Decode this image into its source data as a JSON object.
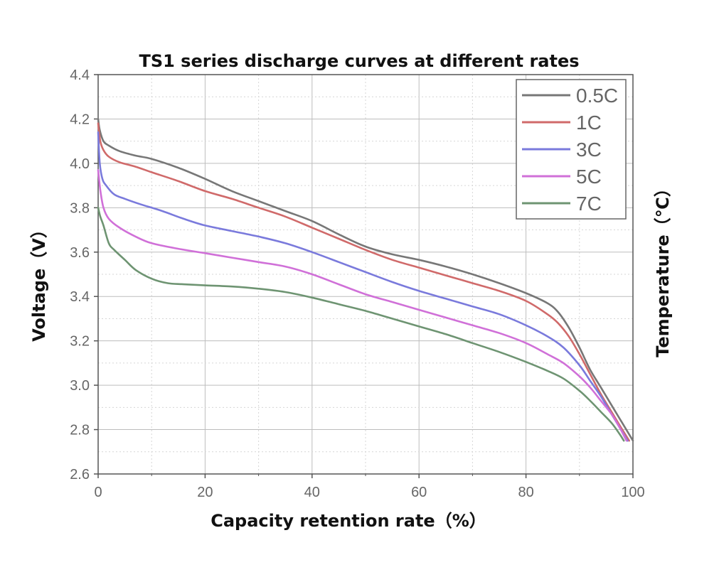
{
  "chart_data": {
    "type": "line",
    "title": "TS1 series discharge curves at different rates",
    "xlabel": "Capacity retention rate（%）",
    "ylabel": "Voltage（V）",
    "y2label": "Temperature（℃）",
    "xlim": [
      0,
      100
    ],
    "ylim": [
      2.6,
      4.4
    ],
    "xticks": [
      0,
      20,
      40,
      60,
      80,
      100
    ],
    "yticks": [
      2.6,
      2.8,
      3.0,
      3.2,
      3.4,
      3.6,
      3.8,
      4.0,
      4.2,
      4.4
    ],
    "tick_labels_x": [
      "0",
      "20",
      "40",
      "60",
      "80",
      "100"
    ],
    "tick_labels_y": [
      "2.6",
      "2.8",
      "3.0",
      "3.2",
      "3.4",
      "3.6",
      "3.8",
      "4.0",
      "4.2",
      "4.4"
    ],
    "grid": true,
    "legend_position": "top-right",
    "series": [
      {
        "name": "0.5C",
        "color": "#777777",
        "points": [
          [
            0,
            4.2
          ],
          [
            0.3,
            4.15
          ],
          [
            1,
            4.1
          ],
          [
            2,
            4.08
          ],
          [
            4,
            4.055
          ],
          [
            7,
            4.035
          ],
          [
            10,
            4.02
          ],
          [
            15,
            3.98
          ],
          [
            20,
            3.93
          ],
          [
            25,
            3.875
          ],
          [
            30,
            3.83
          ],
          [
            35,
            3.785
          ],
          [
            40,
            3.74
          ],
          [
            45,
            3.68
          ],
          [
            50,
            3.625
          ],
          [
            55,
            3.59
          ],
          [
            60,
            3.565
          ],
          [
            65,
            3.535
          ],
          [
            70,
            3.5
          ],
          [
            75,
            3.46
          ],
          [
            80,
            3.415
          ],
          [
            84,
            3.37
          ],
          [
            86,
            3.33
          ],
          [
            88,
            3.26
          ],
          [
            90,
            3.17
          ],
          [
            92,
            3.07
          ],
          [
            94,
            2.99
          ],
          [
            96,
            2.91
          ],
          [
            98,
            2.83
          ],
          [
            100,
            2.75
          ]
        ]
      },
      {
        "name": "1C",
        "color": "#d06a6a",
        "points": [
          [
            0,
            4.18
          ],
          [
            0.4,
            4.1
          ],
          [
            1,
            4.06
          ],
          [
            2,
            4.03
          ],
          [
            4,
            4.005
          ],
          [
            7,
            3.985
          ],
          [
            10,
            3.96
          ],
          [
            15,
            3.92
          ],
          [
            20,
            3.875
          ],
          [
            25,
            3.84
          ],
          [
            30,
            3.8
          ],
          [
            35,
            3.76
          ],
          [
            40,
            3.71
          ],
          [
            45,
            3.66
          ],
          [
            50,
            3.61
          ],
          [
            55,
            3.565
          ],
          [
            60,
            3.53
          ],
          [
            65,
            3.495
          ],
          [
            70,
            3.46
          ],
          [
            75,
            3.425
          ],
          [
            80,
            3.38
          ],
          [
            84,
            3.32
          ],
          [
            86,
            3.28
          ],
          [
            88,
            3.22
          ],
          [
            90,
            3.14
          ],
          [
            92,
            3.05
          ],
          [
            94,
            2.96
          ],
          [
            96,
            2.88
          ],
          [
            98,
            2.8
          ],
          [
            99.3,
            2.75
          ]
        ]
      },
      {
        "name": "3C",
        "color": "#7a7adc",
        "points": [
          [
            0,
            4.14
          ],
          [
            0.3,
            4.0
          ],
          [
            0.8,
            3.93
          ],
          [
            1.5,
            3.9
          ],
          [
            3,
            3.86
          ],
          [
            5,
            3.84
          ],
          [
            8,
            3.815
          ],
          [
            12,
            3.785
          ],
          [
            16,
            3.75
          ],
          [
            20,
            3.72
          ],
          [
            25,
            3.695
          ],
          [
            30,
            3.67
          ],
          [
            35,
            3.64
          ],
          [
            40,
            3.6
          ],
          [
            45,
            3.555
          ],
          [
            50,
            3.51
          ],
          [
            55,
            3.465
          ],
          [
            60,
            3.425
          ],
          [
            65,
            3.39
          ],
          [
            70,
            3.355
          ],
          [
            75,
            3.32
          ],
          [
            80,
            3.27
          ],
          [
            84,
            3.22
          ],
          [
            87,
            3.17
          ],
          [
            90,
            3.09
          ],
          [
            92,
            3.02
          ],
          [
            94,
            2.95
          ],
          [
            96,
            2.87
          ],
          [
            98,
            2.79
          ],
          [
            99,
            2.75
          ]
        ]
      },
      {
        "name": "5C",
        "color": "#d070d8",
        "points": [
          [
            0,
            3.97
          ],
          [
            0.4,
            3.88
          ],
          [
            1,
            3.8
          ],
          [
            2,
            3.75
          ],
          [
            4,
            3.71
          ],
          [
            7,
            3.67
          ],
          [
            10,
            3.64
          ],
          [
            15,
            3.615
          ],
          [
            20,
            3.595
          ],
          [
            25,
            3.575
          ],
          [
            30,
            3.555
          ],
          [
            35,
            3.535
          ],
          [
            40,
            3.5
          ],
          [
            45,
            3.455
          ],
          [
            50,
            3.41
          ],
          [
            55,
            3.375
          ],
          [
            60,
            3.34
          ],
          [
            65,
            3.305
          ],
          [
            70,
            3.27
          ],
          [
            75,
            3.235
          ],
          [
            80,
            3.19
          ],
          [
            84,
            3.14
          ],
          [
            87,
            3.1
          ],
          [
            90,
            3.04
          ],
          [
            92,
            2.99
          ],
          [
            94,
            2.93
          ],
          [
            96,
            2.87
          ],
          [
            97.5,
            2.81
          ],
          [
            98.8,
            2.75
          ]
        ]
      },
      {
        "name": "7C",
        "color": "#6e9472",
        "points": [
          [
            0,
            3.8
          ],
          [
            0.4,
            3.76
          ],
          [
            1,
            3.72
          ],
          [
            2,
            3.64
          ],
          [
            3,
            3.61
          ],
          [
            5,
            3.565
          ],
          [
            7,
            3.52
          ],
          [
            10,
            3.48
          ],
          [
            13,
            3.46
          ],
          [
            16,
            3.455
          ],
          [
            20,
            3.45
          ],
          [
            25,
            3.445
          ],
          [
            30,
            3.435
          ],
          [
            35,
            3.42
          ],
          [
            40,
            3.395
          ],
          [
            45,
            3.365
          ],
          [
            50,
            3.335
          ],
          [
            55,
            3.3
          ],
          [
            60,
            3.265
          ],
          [
            65,
            3.23
          ],
          [
            70,
            3.19
          ],
          [
            75,
            3.15
          ],
          [
            80,
            3.105
          ],
          [
            84,
            3.065
          ],
          [
            87,
            3.03
          ],
          [
            90,
            2.975
          ],
          [
            92,
            2.93
          ],
          [
            94,
            2.88
          ],
          [
            96,
            2.83
          ],
          [
            97.5,
            2.78
          ],
          [
            98.3,
            2.75
          ]
        ]
      }
    ]
  }
}
